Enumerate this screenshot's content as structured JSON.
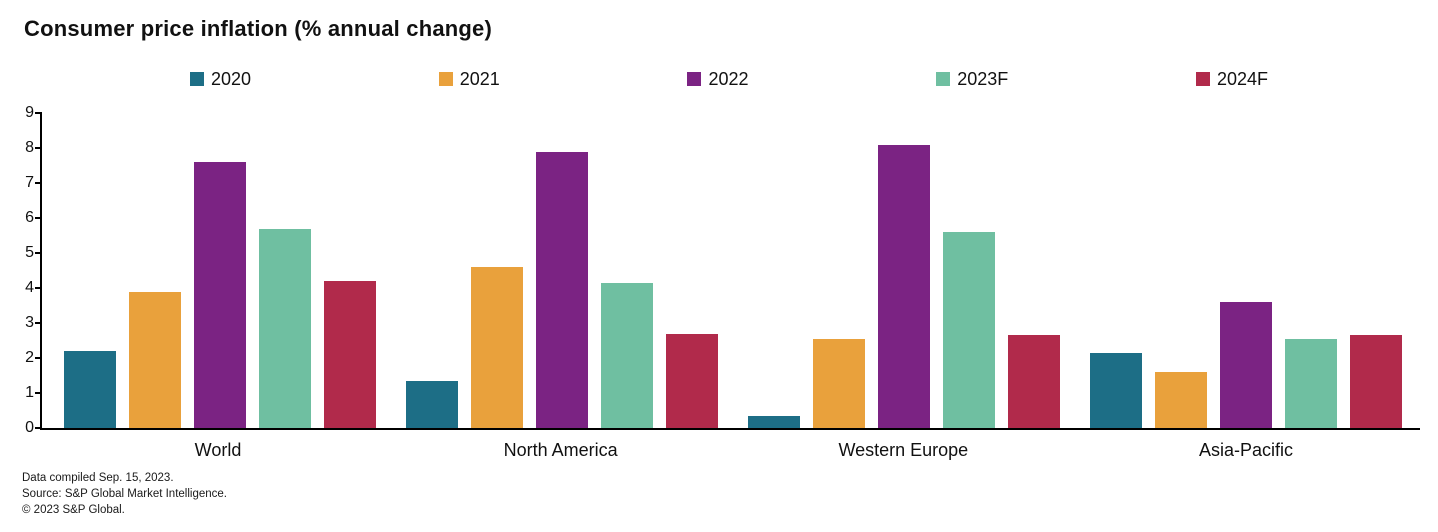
{
  "title": "Consumer price inflation (% annual change)",
  "footer": {
    "line1": "Data compiled Sep. 15, 2023.",
    "line2": "Source: S&P Global Market Intelligence.",
    "line3": "© 2023 S&P Global."
  },
  "chart_data": {
    "type": "bar",
    "title": "Consumer price inflation (% annual change)",
    "categories": [
      "World",
      "North America",
      "Western Europe",
      "Asia-Pacific"
    ],
    "series": [
      {
        "name": "2020",
        "color": "#1d6e86",
        "values": [
          2.2,
          1.35,
          0.35,
          2.15
        ]
      },
      {
        "name": "2021",
        "color": "#e9a13c",
        "values": [
          3.9,
          4.6,
          2.55,
          1.6
        ]
      },
      {
        "name": "2022",
        "color": "#7b2383",
        "values": [
          7.6,
          7.9,
          8.1,
          3.6
        ]
      },
      {
        "name": "2023F",
        "color": "#6fbfa1",
        "values": [
          5.7,
          4.15,
          5.6,
          2.55
        ]
      },
      {
        "name": "2024F",
        "color": "#b12a4b",
        "values": [
          4.2,
          2.7,
          2.65,
          2.65
        ]
      }
    ],
    "xlabel": "",
    "ylabel": "",
    "ylim": [
      0,
      9
    ],
    "yticks": [
      0,
      1,
      2,
      3,
      4,
      5,
      6,
      7,
      8,
      9
    ],
    "grid": false,
    "legend_position": "top"
  }
}
